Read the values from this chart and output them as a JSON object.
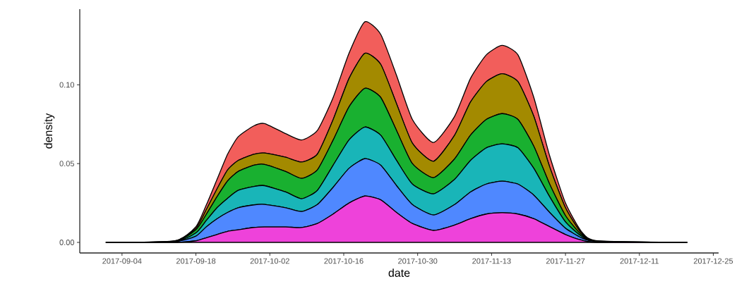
{
  "chart_data": {
    "type": "area",
    "stacked": true,
    "xlabel": "date",
    "ylabel": "density",
    "x": [
      "2017-09-01",
      "2017-09-14",
      "2017-09-18",
      "2017-09-20",
      "2017-09-22",
      "2017-09-24",
      "2017-09-26",
      "2017-09-29",
      "2017-10-01",
      "2017-10-05",
      "2017-10-08",
      "2017-10-11",
      "2017-10-14",
      "2017-10-17",
      "2017-10-20",
      "2017-10-23",
      "2017-10-26",
      "2017-10-29",
      "2017-11-02",
      "2017-11-06",
      "2017-11-09",
      "2017-11-12",
      "2017-11-15",
      "2017-11-18",
      "2017-11-21",
      "2017-11-24",
      "2017-11-27",
      "2017-11-30",
      "2017-12-03",
      "2017-12-20"
    ],
    "series": [
      {
        "color": "#ee42da",
        "values": [
          0,
          0,
          0.001,
          0.003,
          0.005,
          0.007,
          0.008,
          0.0095,
          0.0098,
          0.0098,
          0.0094,
          0.012,
          0.018,
          0.025,
          0.0294,
          0.027,
          0.019,
          0.012,
          0.0076,
          0.011,
          0.015,
          0.018,
          0.0188,
          0.018,
          0.015,
          0.01,
          0.005,
          0.0015,
          0,
          0
        ]
      },
      {
        "color": "#4f88ff",
        "values": [
          0,
          0.0005,
          0.003,
          0.007,
          0.01,
          0.012,
          0.014,
          0.0143,
          0.0143,
          0.0122,
          0.0102,
          0.012,
          0.017,
          0.022,
          0.0237,
          0.022,
          0.017,
          0.012,
          0.0098,
          0.013,
          0.017,
          0.019,
          0.02,
          0.019,
          0.015,
          0.009,
          0.004,
          0.0015,
          0.0005,
          0
        ]
      },
      {
        "color": "#19b5b8",
        "values": [
          0,
          0.0002,
          0.002,
          0.004,
          0.007,
          0.009,
          0.011,
          0.0117,
          0.0119,
          0.01,
          0.0081,
          0.009,
          0.014,
          0.018,
          0.0201,
          0.019,
          0.016,
          0.013,
          0.0134,
          0.016,
          0.02,
          0.023,
          0.0237,
          0.023,
          0.017,
          0.01,
          0.004,
          0.001,
          0.0002,
          0
        ]
      },
      {
        "color": "#19b030",
        "values": [
          0,
          0.0001,
          0.002,
          0.004,
          0.007,
          0.011,
          0.012,
          0.0135,
          0.0135,
          0.013,
          0.0129,
          0.013,
          0.016,
          0.021,
          0.0246,
          0.024,
          0.019,
          0.013,
          0.0103,
          0.013,
          0.016,
          0.018,
          0.0192,
          0.018,
          0.014,
          0.008,
          0.004,
          0.001,
          0.0001,
          0
        ]
      },
      {
        "color": "#a38a00",
        "values": [
          0,
          0.0001,
          0.001,
          0.003,
          0.005,
          0.007,
          0.007,
          0.007,
          0.0072,
          0.009,
          0.0104,
          0.01,
          0.013,
          0.018,
          0.0222,
          0.021,
          0.017,
          0.013,
          0.0104,
          0.015,
          0.021,
          0.024,
          0.0253,
          0.024,
          0.019,
          0.011,
          0.005,
          0.001,
          0.0001,
          0
        ]
      },
      {
        "color": "#f25e5b",
        "values": [
          0,
          0.0001,
          0.001,
          0.003,
          0.006,
          0.01,
          0.015,
          0.018,
          0.0187,
          0.015,
          0.014,
          0.015,
          0.014,
          0.016,
          0.02,
          0.019,
          0.018,
          0.015,
          0.0119,
          0.012,
          0.015,
          0.017,
          0.018,
          0.017,
          0.012,
          0.007,
          0.003,
          0.001,
          0.0001,
          0
        ]
      }
    ],
    "xlim": [
      "2017-08-27",
      "2017-12-26"
    ],
    "xticks": [
      "2017-09-04",
      "2017-09-18",
      "2017-10-02",
      "2017-10-16",
      "2017-10-30",
      "2017-11-13",
      "2017-11-27",
      "2017-12-11",
      "2017-12-25"
    ],
    "ylim": [
      -0.0067,
      0.148
    ],
    "yticks": [
      {
        "value": 0,
        "label": "0.00"
      },
      {
        "value": 0.05,
        "label": "0.05"
      },
      {
        "value": 0.1,
        "label": "0.10"
      }
    ]
  }
}
